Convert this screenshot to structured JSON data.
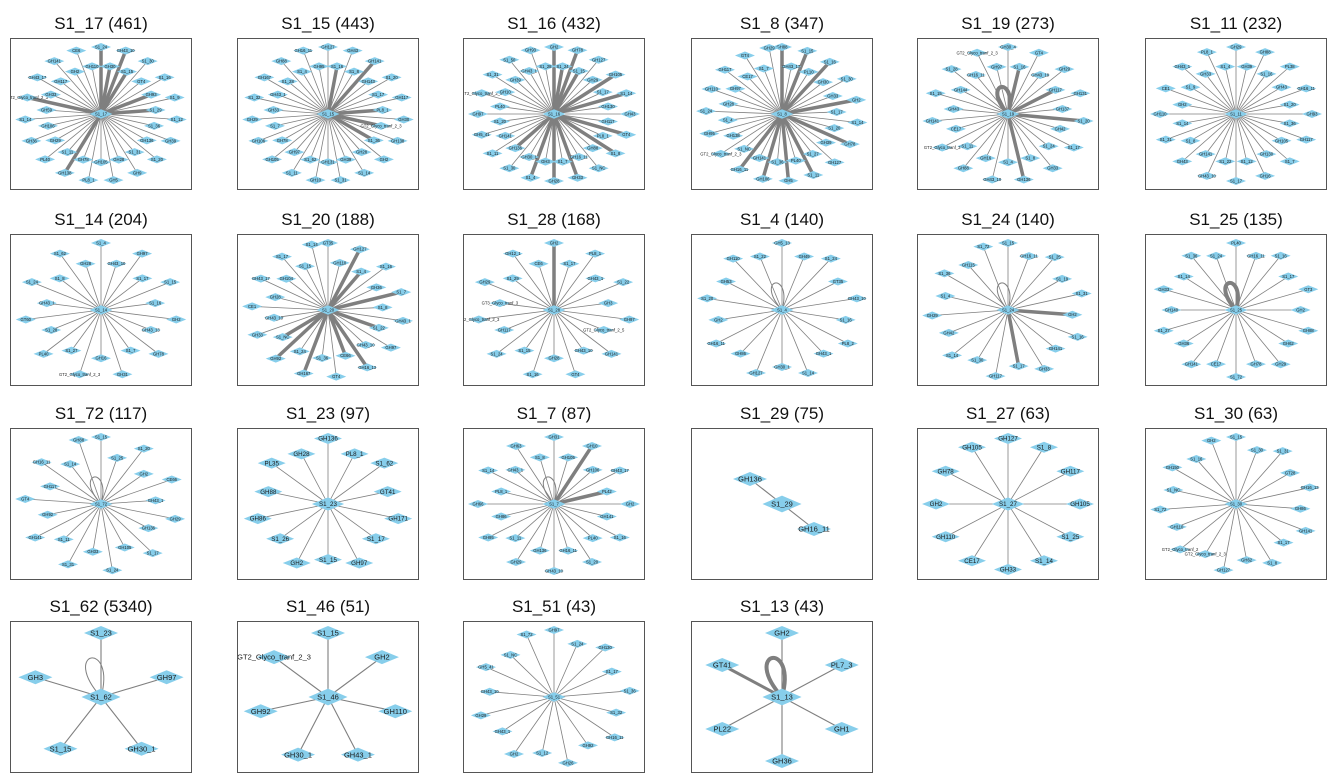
{
  "node_color": "#87CEEB",
  "edge_color": "#7f7f7f",
  "panels": [
    {
      "title": "S1_17 (461)",
      "center": "S1_17",
      "nodes": [
        "S1_24",
        "GH30",
        "GH43_10",
        "S1_15",
        "S1_30",
        "GT4",
        "S1_16",
        "GH93",
        "S1_9",
        "S1_29",
        "S1_12",
        "S1_36",
        "GH39",
        "GH136",
        "S1_20",
        "S1_31",
        "GH9",
        "GH28",
        "GH5",
        "GH105",
        "PL8_1",
        "GH78",
        "GH138",
        "S1_11",
        "PL40",
        "GH29",
        "GH36",
        "GH106",
        "S1_14",
        "GH59",
        "GT2_Glyco_tranf_2_3",
        "GH33",
        "GH43_17",
        "GH117",
        "GH141",
        "GH2",
        "CE6",
        "GH110"
      ],
      "heavy": [
        0,
        1,
        2,
        3,
        7,
        9,
        22,
        30
      ],
      "self_loop": false
    },
    {
      "title": "S1_15 (443)",
      "center": "S1_15",
      "nodes": [
        "GH127",
        "S1_16",
        "GH43",
        "S1_8",
        "GH141",
        "GH143",
        "S1_20",
        "S1_17",
        "GH117",
        "PL8_1",
        "GH30",
        "GT2_Glyco_tranf_2_3",
        "GH138",
        "S1_36",
        "GH2",
        "GH28",
        "S1_14",
        "GH39",
        "S1_31",
        "GH131",
        "GH10",
        "S1_62",
        "S1_11",
        "GH97",
        "GH105",
        "GH78",
        "GH106",
        "S1_7",
        "GH29",
        "GH33",
        "S1_32",
        "GH43_1",
        "GH167",
        "S1_28",
        "GH88",
        "S1_4",
        "GH16_11",
        "GH95"
      ],
      "heavy": [
        1,
        4,
        9,
        11,
        13
      ],
      "self_loop": false
    },
    {
      "title": "S1_16 (432)",
      "center": "S1_16",
      "nodes": [
        "GH2",
        "S1_24",
        "GH78",
        "S1_15",
        "GH127",
        "GH29",
        "GH105",
        "S1_17",
        "S1_14",
        "GH130",
        "GH43",
        "GH117",
        "GT4",
        "PL8_1",
        "S1_8",
        "GH88",
        "S1_NC",
        "GH16_11",
        "GH33",
        "S1_7",
        "GH28",
        "GH3",
        "S1_4",
        "GH30_1",
        "S1_30",
        "GH136",
        "S1_11",
        "GH141",
        "GH5_41",
        "S1_20",
        "GH97",
        "PL40",
        "GT2_Glyco_tranf_2_3",
        "GH10",
        "S1_31",
        "GH39",
        "S1_50",
        "GH43_1",
        "GH93",
        "S1_28"
      ],
      "heavy": [
        0,
        1,
        2,
        3,
        6,
        8,
        12,
        14,
        18,
        20,
        22,
        25
      ],
      "self_loop": false
    },
    {
      "title": "S1_8 (347)",
      "center": "S1_8",
      "nodes": [
        "GH88",
        "GH43_17",
        "S1_15",
        "PL10",
        "S1_16",
        "GH30",
        "S1_30",
        "GH33",
        "GH2",
        "S1_17",
        "S1_14",
        "S1_20",
        "GH78",
        "GH39",
        "GH127",
        "S1_27",
        "S1_11",
        "PL40",
        "GH5",
        "S1_36",
        "GH106",
        "GH141",
        "GH16_11",
        "S1_NC",
        "GT2_Glyco_tranf_2_3",
        "GH138",
        "GH95",
        "S1_4",
        "S1_24",
        "GH28",
        "GH110",
        "GH97",
        "GH117",
        "CE17",
        "GT4",
        "S1_7",
        "GH29"
      ],
      "heavy": [
        0,
        2,
        4,
        8,
        12,
        16,
        18,
        20,
        22
      ],
      "self_loop": false
    },
    {
      "title": "S1_19 (273)",
      "center": "S1_19",
      "nodes": [
        "GH30_4",
        "S1_16",
        "GT4",
        "GH43_19",
        "GH29",
        "GH117",
        "GH131",
        "GH137",
        "S1_20",
        "GH42",
        "S1_17",
        "S1_24",
        "GH33",
        "S1_8",
        "GH136",
        "S1_4",
        "GH43_10",
        "GH16",
        "GH88",
        "S1_11",
        "GT2_Glyco_tranf_3",
        "CE17",
        "GH141",
        "GH43",
        "S1_15",
        "GH144",
        "S1_28",
        "GH16_11",
        "GT2_Glyco_tranf_2_3",
        "GH97"
      ],
      "heavy": [
        1,
        5,
        8,
        14
      ],
      "self_loop": true
    },
    {
      "title": "S1_11 (232)",
      "center": "S1_11",
      "nodes": [
        "GH29",
        "GH39",
        "GH88",
        "S1_16",
        "PL38",
        "GH43",
        "GH16_11",
        "S1_20",
        "GH93",
        "S1_36",
        "GH117",
        "GH105",
        "S1_7",
        "GH130",
        "GH16",
        "S1_12",
        "S1_17",
        "S1_22",
        "GH43_10",
        "GH141",
        "GH43",
        "S1_8",
        "S1_31",
        "S1_14",
        "GH110",
        "GH2",
        "CE1",
        "S1_9",
        "GH43_1",
        "GH33",
        "PL8_1",
        "S1_4"
      ],
      "heavy": [],
      "self_loop": false
    },
    {
      "title": "S1_14 (204)",
      "center": "S1_14",
      "nodes": [
        "S1_4",
        "GH43_10",
        "GH97",
        "S1_17",
        "S1_15",
        "S1_16",
        "GH2",
        "GH43_13",
        "GH78",
        "S1_7",
        "GH31",
        "GH16",
        "GT2_Glyco_tranf_2_3",
        "S1_27",
        "PL40",
        "S1_28",
        "GT60",
        "GH43_1",
        "S1_24",
        "S1_8",
        "S1_62",
        "GH28"
      ],
      "heavy": [],
      "self_loop": false
    },
    {
      "title": "S1_20 (188)",
      "center": "S1_20",
      "nodes": [
        "GT35",
        "GH110",
        "GH127",
        "S1_4",
        "S1_16",
        "GH36",
        "S1_7",
        "S1_8",
        "GH43_1",
        "S1_22",
        "GH97",
        "GH43_10",
        "GH16_13",
        "CE66",
        "GT4",
        "S1_36",
        "GH167",
        "S1_24",
        "GH92",
        "S1_NC",
        "GH33",
        "GH43_10",
        "CE1",
        "GH28",
        "GH43_17",
        "GH104",
        "S1_17",
        "S1_15",
        "S1_14"
      ],
      "heavy": [
        2,
        3,
        6,
        9,
        12,
        13,
        16,
        18,
        19
      ],
      "self_loop": false
    },
    {
      "title": "S1_28 (168)",
      "center": "S1_28",
      "nodes": [
        "GH2",
        "S1_17",
        "PL8_1",
        "GH43_1",
        "S1_22",
        "GH3",
        "GH97",
        "GT2_Glyco_tranf_2_5",
        "GH141",
        "GH43_10",
        "GT4",
        "GH28",
        "S1_16",
        "S1_15",
        "S1_24",
        "GH117",
        "GT2_Glyco_tranf_2_3",
        "GT3_Glyco_tranf_3",
        "GH29",
        "S1_29",
        "GH12_1",
        "CE6"
      ],
      "heavy": [
        0
      ],
      "self_loop": false
    },
    {
      "title": "S1_4 (140)",
      "center": "S1_4",
      "nodes": [
        "GH5_13",
        "GH49",
        "S1_24",
        "GT35",
        "GH43_10",
        "S1_16",
        "PL8_2",
        "GH43_1",
        "S1_14",
        "GH30_1",
        "GH127",
        "GH86",
        "GH16_11",
        "GH2",
        "S1_20",
        "GH53",
        "GH110",
        "S1_22"
      ],
      "heavy": [],
      "self_loop": true
    },
    {
      "title": "S1_24 (140)",
      "center": "S1_24",
      "nodes": [
        "S1_15",
        "GH16_11",
        "S1_25",
        "S1_19",
        "S1_31",
        "GH2",
        "S1_16",
        "GH141",
        "GH33",
        "S1_17",
        "GH117",
        "S1_30",
        "S1_14",
        "GH42",
        "GH29",
        "S1_4",
        "S1_36",
        "GH115",
        "S1_72"
      ],
      "heavy": [
        5,
        9
      ],
      "self_loop": true
    },
    {
      "title": "S1_25 (135)",
      "center": "S1_25",
      "nodes": [
        "PL40",
        "GH16_11",
        "S1_16",
        "S1_17",
        "GT3",
        "GH2",
        "GH88",
        "GH62",
        "GH29",
        "GH78",
        "S1_72",
        "CE17",
        "GH141",
        "GH36",
        "S1_27",
        "GH140",
        "GH33",
        "S1_14",
        "S1_36",
        "S1_24"
      ],
      "heavy": [],
      "self_loop": true
    },
    {
      "title": "S1_72 (117)",
      "center": "S1_72",
      "nodes": [
        "S1_15",
        "S1_25",
        "S1_20",
        "GH2",
        "CE66",
        "GH43_1",
        "GH29",
        "GH136",
        "S1_17",
        "GH105",
        "S1_24",
        "GH33",
        "S1_31",
        "S1_11",
        "GH141",
        "GH92",
        "GT4",
        "GH117",
        "GH16_11",
        "S1_14",
        "GH88"
      ],
      "heavy": [],
      "self_loop": true
    },
    {
      "title": "S1_23 (97)",
      "center": "S1_23",
      "nodes": [
        "GH136",
        "PL8_1",
        "S1_62",
        "GT41",
        "GH171",
        "S1_17",
        "GH97",
        "S1_15",
        "GH2",
        "S1_26",
        "GH86",
        "GH88",
        "PL35",
        "GH28"
      ],
      "heavy": [],
      "self_loop": false
    },
    {
      "title": "S1_7 (87)",
      "center": "S1_7",
      "nodes": [
        "GH31",
        "GH105",
        "GH10",
        "GH106",
        "GH43_17",
        "PL42",
        "GH2",
        "GH141",
        "S1_16",
        "PL40",
        "S1_20",
        "GH16_11",
        "GH43_10",
        "GH136",
        "GH29",
        "S1_11",
        "GH95",
        "GH86",
        "GH66",
        "PL8_1",
        "S1_14",
        "GH43_1",
        "GH63",
        "S1_8"
      ],
      "heavy": [
        2,
        5
      ],
      "self_loop": true
    },
    {
      "title": "S1_29 (75)",
      "center": "S1_29",
      "nodes": [
        "GH136",
        "GH16_11"
      ],
      "heavy": [],
      "self_loop": false
    },
    {
      "title": "S1_27 (63)",
      "center": "S1_27",
      "nodes": [
        "GH127",
        "S1_8",
        "GH117",
        "GH105",
        "S1_25",
        "S1_14",
        "GH33",
        "CE17",
        "GH110",
        "GH2",
        "GH78",
        "GH105"
      ],
      "heavy": [],
      "self_loop": false
    },
    {
      "title": "S1_30 (63)",
      "center": "S1_30",
      "nodes": [
        "S1_15",
        "S1_30",
        "S1_31",
        "GT28",
        "GH16_13",
        "GH86",
        "GH141",
        "S1_17",
        "S1_8",
        "GH62",
        "GH127",
        "GT2_Glyco_tranf_2_3",
        "GT2_Glyco_tranf_2",
        "GH110",
        "S1_72",
        "S1_NC",
        "GH150",
        "S1_16",
        "GH2"
      ],
      "heavy": [],
      "self_loop": false
    },
    {
      "title": "S1_62 (5340)",
      "center": "S1_62",
      "nodes": [
        "S1_23",
        "GH97",
        "GH30_1",
        "S1_15",
        "GH3"
      ],
      "heavy": [],
      "self_loop": true
    },
    {
      "title": "S1_46 (51)",
      "center": "S1_46",
      "nodes": [
        "S1_15",
        "GH2",
        "GH110",
        "GH43_1",
        "GH30_1",
        "GH92",
        "GT2_Glyco_tranf_2_3"
      ],
      "heavy": [],
      "self_loop": false
    },
    {
      "title": "S1_51 (43)",
      "center": "S1_51",
      "nodes": [
        "GH97",
        "S1_24",
        "GH130",
        "S1_17",
        "S1_36",
        "S1_32",
        "GH16_11",
        "GH92",
        "GH26",
        "S1_12",
        "GH2",
        "GH43_1",
        "GH29",
        "GH43_10",
        "GH5_41",
        "S1_NC",
        "S1_72"
      ],
      "heavy": [],
      "self_loop": false
    },
    {
      "title": "S1_13 (43)",
      "center": "S1_13",
      "nodes": [
        "GH2",
        "PL7_3",
        "GH1",
        "GH36",
        "PL22",
        "GT41"
      ],
      "heavy": [
        5
      ],
      "self_loop": true
    }
  ]
}
